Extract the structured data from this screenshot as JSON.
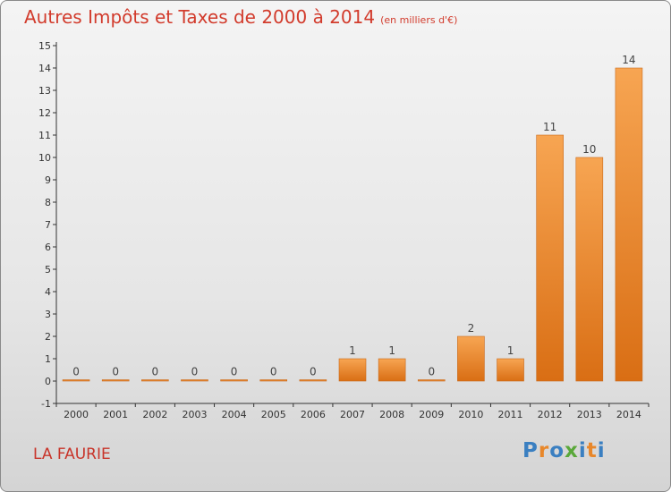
{
  "title": "Autres Impôts et Taxes de 2000 à 2014",
  "subtitle": "(en milliers d'€)",
  "commune": "LA FAURIE",
  "logo": {
    "text": "Proxiti",
    "colors": [
      "#3a7fc1",
      "#e8872a",
      "#3a7fc1",
      "#5aa83a",
      "#3a7fc1",
      "#e8872a",
      "#3a7fc1"
    ]
  },
  "colors": {
    "bar": "#f08a30",
    "title": "#d23b2c",
    "axis": "#333333"
  },
  "chart_data": {
    "type": "bar",
    "categories": [
      "2000",
      "2001",
      "2002",
      "2003",
      "2004",
      "2005",
      "2006",
      "2007",
      "2008",
      "2009",
      "2010",
      "2011",
      "2012",
      "2013",
      "2014"
    ],
    "values": [
      0,
      0,
      0,
      0,
      0,
      0,
      0,
      1,
      1,
      0,
      2,
      1,
      11,
      10,
      14
    ],
    "data_labels": [
      "0",
      "0",
      "0",
      "0",
      "0",
      "0",
      "0",
      "1",
      "1",
      "0",
      "2",
      "1",
      "11",
      "10",
      "14"
    ],
    "yticks": [
      "-1",
      "0",
      "1",
      "2",
      "3",
      "4",
      "5",
      "6",
      "7",
      "8",
      "9",
      "10",
      "11",
      "12",
      "13",
      "14",
      "15"
    ],
    "ylim": [
      -1,
      15
    ],
    "grid": false
  }
}
